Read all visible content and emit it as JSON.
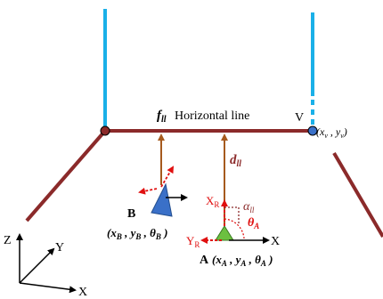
{
  "labels": {
    "f_symbol": "f",
    "f_subscript": "ll",
    "horizontal_line": "Horizontal line",
    "vertex": "V",
    "vertex_coords": "(x",
    "vertex_coords_x_sub": "v",
    "vertex_coords_mid": " , y",
    "vertex_coords_y_sub": "v",
    "vertex_coords_end": ")",
    "d_symbol": "d",
    "d_subscript": "ll",
    "alpha_symbol": "α",
    "alpha_subscript": "ll",
    "theta_a_symbol": "θ",
    "theta_a_subscript": "A",
    "xr_symbol": "X",
    "xr_subscript": "R",
    "yr_symbol": "Y",
    "yr_subscript": "R",
    "x_local": "X",
    "robot_b": "B",
    "robot_b_pose": "(x",
    "robot_b_pose_x_sub": "B",
    "robot_b_pose_mid1": " , y",
    "robot_b_pose_y_sub": "B",
    "robot_b_pose_mid2": " , θ",
    "robot_b_pose_t_sub": "B",
    "robot_b_pose_end": " )",
    "robot_a": "A",
    "robot_a_pose": "(x",
    "robot_a_pose_x_sub": "A",
    "robot_a_pose_mid1": " , y",
    "robot_a_pose_y_sub": "A",
    "robot_a_pose_mid2": " , θ",
    "robot_a_pose_t_sub": "A",
    "robot_a_pose_end": " )",
    "axis_z": "Z",
    "axis_y": "Y",
    "axis_x": "X"
  },
  "colors": {
    "wall": "#8b2a2a",
    "vertical_edge": "#1ab0e8",
    "distance_line": "#a65a1e",
    "robot_b": "#3a70c8",
    "robot_a": "#6cc040",
    "heading_red": "#e01010"
  }
}
